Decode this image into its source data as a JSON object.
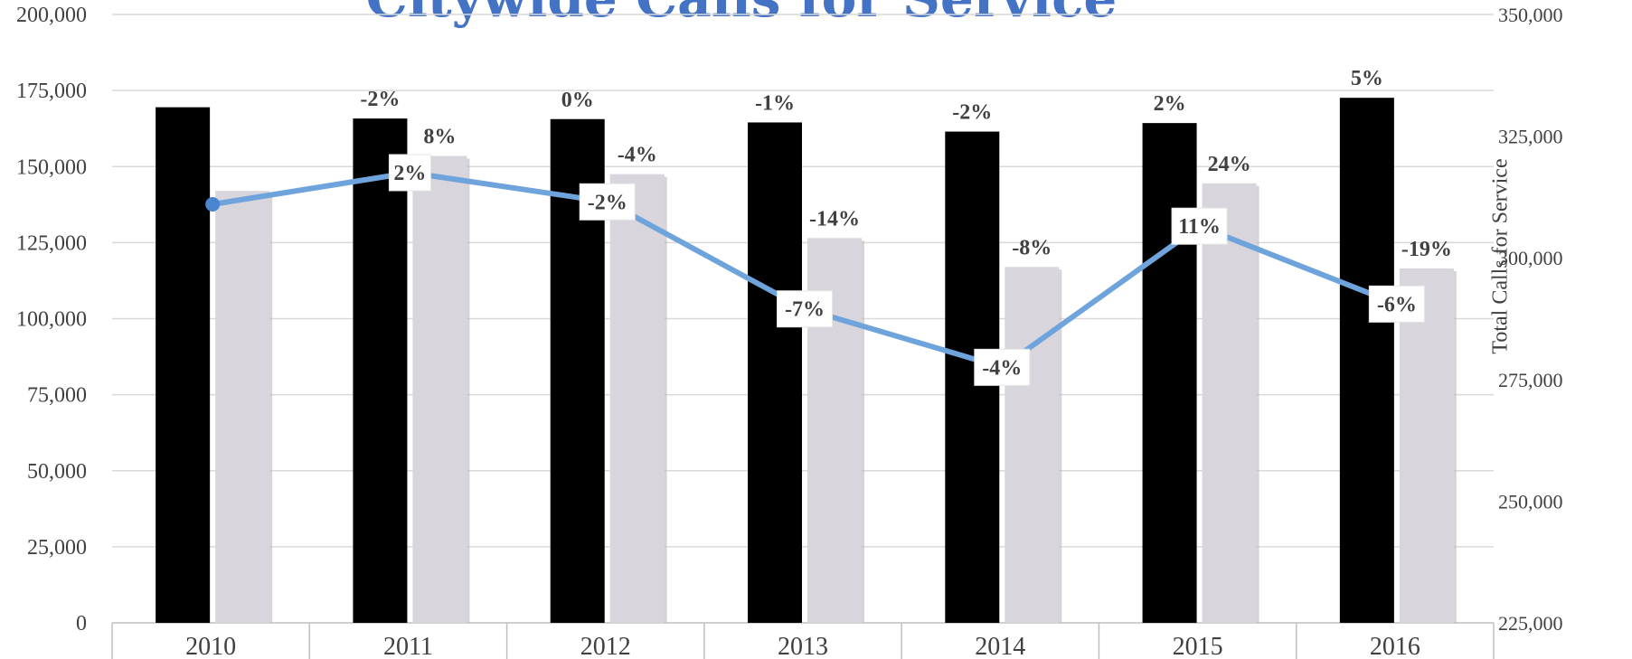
{
  "chart_data": {
    "type": "bar",
    "title": "Citywide Calls for Service",
    "categories": [
      "2010",
      "2011",
      "2012",
      "2013",
      "2014",
      "2015",
      "2016"
    ],
    "y_left": {
      "range": [
        0,
        200000
      ],
      "ticks": [
        "0",
        "25,000",
        "50,000",
        "75,000",
        "100,000",
        "125,000",
        "150,000",
        "175,000",
        "200,000"
      ]
    },
    "y_right": {
      "label": "Total Calls for Service",
      "range": [
        225000,
        350000
      ],
      "ticks": [
        "225,000",
        "250,000",
        "275,000",
        "300,000",
        "325,000",
        "350,000"
      ]
    },
    "series": [
      {
        "kind": "bar",
        "axis": "left",
        "color": "#000000",
        "values": [
          169500,
          165800,
          165600,
          164500,
          161500,
          164300,
          172600
        ],
        "labels": [
          "",
          "-2%",
          "0%",
          "-1%",
          "-2%",
          "2%",
          "5%"
        ]
      },
      {
        "kind": "bar",
        "axis": "left",
        "color": "#d9d5dc",
        "values": [
          142000,
          153500,
          147500,
          126500,
          117000,
          144500,
          116500
        ],
        "labels": [
          "",
          "8%",
          "-4%",
          "-14%",
          "-8%",
          "24%",
          "-19%"
        ]
      },
      {
        "kind": "line",
        "axis": "right",
        "color": "#6fa3dc",
        "values": [
          311000,
          317500,
          311500,
          289500,
          277500,
          306500,
          290500
        ],
        "labels": [
          "",
          "2%",
          "-2%",
          "-7%",
          "-4%",
          "11%",
          "-6%"
        ]
      }
    ],
    "grid": true
  }
}
